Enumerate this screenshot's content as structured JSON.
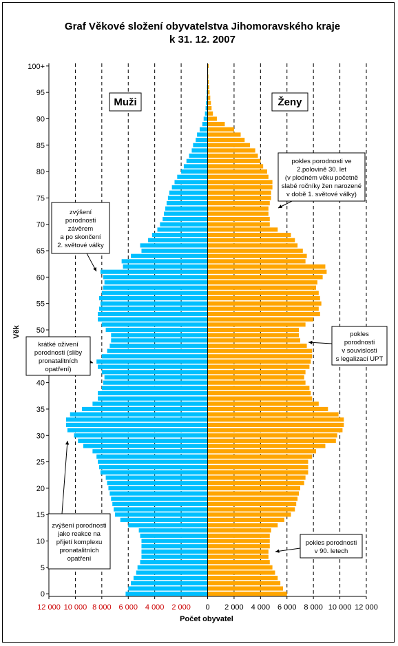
{
  "chart_data": {
    "type": "bar",
    "orientation": "horizontal-pyramid",
    "title_line1": "Graf  Věkové složení obyvatelstva Jihomoravského kraje",
    "title_line2": "k 31. 12. 2007",
    "xlabel": "Počet obyvatel",
    "ylabel": "Věk",
    "xlim": [
      -12000,
      12000
    ],
    "x_ticks": [
      "12 000",
      "10 000",
      "8 000",
      "6 000",
      "4 000",
      "2 000",
      "0",
      "2 000",
      "4 000",
      "6 000",
      "8 000",
      "10 000",
      "12 000"
    ],
    "y_ticks": [
      "0",
      "5",
      "10",
      "15",
      "20",
      "25",
      "30",
      "35",
      "40",
      "45",
      "50",
      "55",
      "60",
      "65",
      "70",
      "75",
      "80",
      "85",
      "90",
      "95",
      "100+"
    ],
    "grid": "vertical dashed at 2000 steps",
    "series": [
      {
        "name": "Muži",
        "color": "#00bfff",
        "values": [
          6200,
          6000,
          5800,
          5600,
          5400,
          5300,
          5100,
          5000,
          5000,
          5000,
          5000,
          5100,
          5200,
          6000,
          6600,
          7000,
          7100,
          7200,
          7300,
          7400,
          7500,
          7600,
          7700,
          8100,
          8200,
          8300,
          8400,
          8700,
          9400,
          9800,
          10100,
          10600,
          10700,
          10700,
          10400,
          9500,
          8700,
          8300,
          8300,
          8000,
          7900,
          7800,
          8000,
          8300,
          8400,
          8000,
          7600,
          7400,
          7300,
          7300,
          7700,
          8000,
          8300,
          8300,
          8200,
          8100,
          8200,
          8000,
          7900,
          7800,
          7900,
          8100,
          6400,
          6500,
          5800,
          5000,
          5100,
          4500,
          4200,
          3800,
          3600,
          3400,
          3300,
          3200,
          3100,
          3000,
          2900,
          2700,
          2500,
          2300,
          2000,
          1800,
          1600,
          1400,
          1200,
          1100,
          900,
          800,
          600,
          400,
          300,
          200,
          150,
          120,
          90,
          70,
          50,
          30,
          20,
          15,
          30
        ]
      },
      {
        "name": "Ženy",
        "color": "#ffa500",
        "values": [
          6000,
          5700,
          5500,
          5300,
          5100,
          4900,
          4700,
          4600,
          4600,
          4700,
          4700,
          4700,
          4800,
          5300,
          5800,
          6300,
          6600,
          6700,
          6800,
          6900,
          7000,
          7300,
          7400,
          7600,
          7600,
          7600,
          7900,
          8200,
          8900,
          9700,
          9800,
          10200,
          10300,
          10300,
          9900,
          9100,
          8400,
          7900,
          7800,
          7700,
          7400,
          7300,
          7400,
          7700,
          7800,
          7900,
          7900,
          7500,
          7000,
          6900,
          6900,
          7400,
          8000,
          8500,
          8400,
          8600,
          8500,
          8400,
          8200,
          8300,
          8700,
          9000,
          8900,
          7400,
          7500,
          7200,
          6800,
          6600,
          6300,
          5300,
          4700,
          4700,
          4600,
          4600,
          4700,
          4800,
          4800,
          4900,
          4900,
          4600,
          4500,
          4200,
          4000,
          3800,
          3600,
          3200,
          2800,
          2500,
          2000,
          1300,
          700,
          400,
          300,
          250,
          200,
          150,
          120,
          90,
          60,
          40,
          80
        ]
      }
    ],
    "labels": {
      "men": "Muži",
      "women": "Ženy"
    },
    "annotations": [
      {
        "side": "left",
        "lines": [
          "zvýšení",
          "porodnosti",
          "závěrem",
          "a po skončení",
          "2. světové války"
        ]
      },
      {
        "side": "left",
        "lines": [
          "krátké oživení",
          "porodnosti (sliby",
          "pronatalitních",
          "opatření)"
        ]
      },
      {
        "side": "left",
        "lines": [
          "zvýšení porodnosti",
          "jako reakce na",
          "přijetí komplexu",
          "pronatalitních",
          "opatření"
        ]
      },
      {
        "side": "right",
        "lines": [
          "pokles porodnosti ve",
          "2.polovině 30. let",
          "(v plodném věku početně",
          "slabé ročníky žen narozené",
          "v době 1. světové války)"
        ]
      },
      {
        "side": "right",
        "lines": [
          "pokles",
          "porodnosti",
          "v souvislosti",
          "s legalizací UPT"
        ]
      },
      {
        "side": "right",
        "lines": [
          "pokles porodnosti",
          "v 90. letech"
        ]
      }
    ]
  }
}
